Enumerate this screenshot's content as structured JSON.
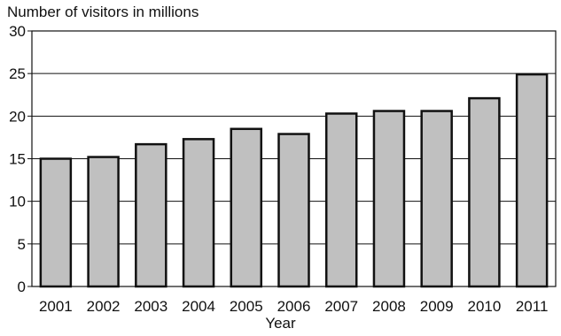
{
  "chart_data": {
    "type": "bar",
    "ylabel": "Number of visitors in millions",
    "xlabel": "Year",
    "categories": [
      "2001",
      "2002",
      "2003",
      "2004",
      "2005",
      "2006",
      "2007",
      "2008",
      "2009",
      "2010",
      "2011"
    ],
    "values": [
      15.0,
      15.2,
      16.7,
      17.3,
      18.5,
      17.9,
      20.3,
      20.6,
      20.6,
      22.1,
      24.9
    ],
    "ylim": [
      0,
      30
    ],
    "yticks": [
      0,
      5,
      10,
      15,
      20,
      25,
      30
    ],
    "grid": true,
    "bar_color": "#c0c0c0",
    "bar_edge_color": "#111111"
  }
}
